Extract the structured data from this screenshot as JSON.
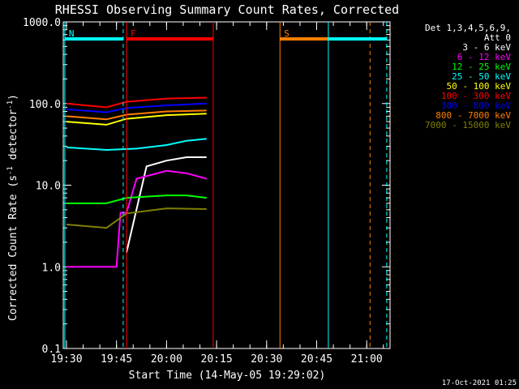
{
  "chart_data": {
    "type": "line",
    "title": "RHESSI Observing Summary Count Rates, Corrected",
    "xlabel": "Start Time (14-May-05 19:29:02)",
    "ylabel": "Corrected Count Rate (s^-1 detector^-1)",
    "ylabel_parts": {
      "main": "Corrected Count Rate (s",
      "sup1": "-1",
      "mid": " detector",
      "sup2": "-1",
      "end": ")"
    },
    "y_scale": "log",
    "ylim": [
      0.1,
      1000
    ],
    "xlim": [
      "19:29:02",
      "21:07:00"
    ],
    "x_ticks": [
      "19:30",
      "19:45",
      "20:00",
      "20:15",
      "20:30",
      "20:45",
      "21:00"
    ],
    "y_ticks": [
      "0.1",
      "1.0",
      "10.0",
      "100.0",
      "1000.0"
    ],
    "legend_header": [
      "Det 1,3,4,5,6,9,",
      "Att 0"
    ],
    "legend_placement": "right",
    "timestamp": "17-Oct-2021 01:25",
    "markers": [
      {
        "label": "N",
        "color": "#00ffff",
        "start": "19:29:30",
        "end": "19:47:00",
        "end_dashed": true
      },
      {
        "label": "F",
        "color": "#ff0000",
        "start": "19:48:00",
        "end": "20:14:00"
      },
      {
        "label": "S",
        "color": "#ff8000",
        "start": "20:34:00",
        "end": "21:01:00",
        "end_dashed": true
      },
      {
        "label": "",
        "color": "#00ffff",
        "start": "20:48:30",
        "end": "21:06:00",
        "end_dashed": true
      }
    ],
    "series": [
      {
        "name": "3 - 6 keV",
        "color": "#ffffff",
        "values": [
          [
            19.78,
            null
          ],
          [
            19.8,
            1.5
          ],
          [
            19.9,
            17
          ],
          [
            20.0,
            20
          ],
          [
            20.1,
            22
          ],
          [
            20.2,
            22
          ]
        ]
      },
      {
        "name": "6 - 12 keV",
        "color": "#ff00ff",
        "values": [
          [
            19.5,
            1.0
          ],
          [
            19.75,
            1.0
          ],
          [
            19.77,
            4.6
          ],
          [
            19.8,
            4.6
          ],
          [
            19.85,
            12
          ],
          [
            20.0,
            15
          ],
          [
            20.1,
            14
          ],
          [
            20.2,
            12
          ]
        ]
      },
      {
        "name": "12 - 25 keV",
        "color": "#00ff00",
        "values": [
          [
            19.5,
            6
          ],
          [
            19.7,
            6
          ],
          [
            19.8,
            7
          ],
          [
            20.0,
            7.5
          ],
          [
            20.1,
            7.5
          ],
          [
            20.2,
            7
          ]
        ]
      },
      {
        "name": "25 - 50 keV",
        "color": "#00ffff",
        "values": [
          [
            19.5,
            29
          ],
          [
            19.7,
            27
          ],
          [
            19.85,
            28
          ],
          [
            20.0,
            31
          ],
          [
            20.1,
            35
          ],
          [
            20.2,
            37
          ]
        ]
      },
      {
        "name": "50 - 100 keV",
        "color": "#ffff00",
        "values": [
          [
            19.5,
            60
          ],
          [
            19.7,
            55
          ],
          [
            19.8,
            65
          ],
          [
            20.0,
            72
          ],
          [
            20.2,
            75
          ]
        ]
      },
      {
        "name": "100 - 300 keV",
        "color": "#ff0000",
        "values": [
          [
            19.5,
            100
          ],
          [
            19.7,
            90
          ],
          [
            19.8,
            105
          ],
          [
            20.0,
            115
          ],
          [
            20.2,
            118
          ]
        ]
      },
      {
        "name": "300 - 800 keV",
        "color": "#0000ff",
        "values": [
          [
            19.5,
            85
          ],
          [
            19.7,
            78
          ],
          [
            19.8,
            88
          ],
          [
            20.0,
            95
          ],
          [
            20.2,
            100
          ]
        ]
      },
      {
        "name": "800 - 7000 keV",
        "color": "#ff8000",
        "values": [
          [
            19.5,
            70
          ],
          [
            19.7,
            64
          ],
          [
            19.8,
            73
          ],
          [
            20.0,
            80
          ],
          [
            20.2,
            82
          ]
        ]
      },
      {
        "name": "7000 - 15000 keV",
        "color": "#808000",
        "values": [
          [
            19.5,
            3.3
          ],
          [
            19.7,
            3.0
          ],
          [
            19.8,
            4.5
          ],
          [
            20.0,
            5.2
          ],
          [
            20.2,
            5.1
          ]
        ]
      }
    ]
  }
}
